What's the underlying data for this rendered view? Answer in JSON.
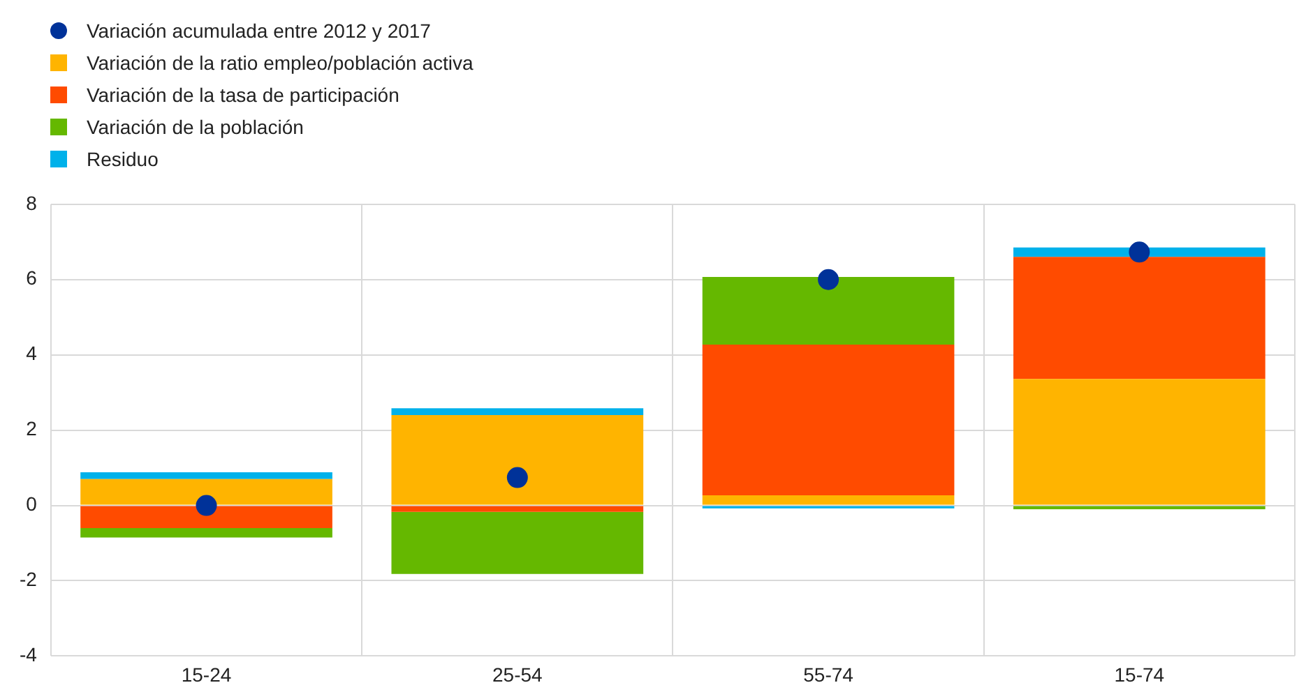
{
  "chart_data": {
    "type": "bar",
    "stacked": true,
    "categories": [
      "15-24",
      "25-54",
      "55-74",
      "15-74"
    ],
    "series": [
      {
        "name": "Variación acumulada entre 2012 y 2017",
        "type": "scatter",
        "color": "#003299",
        "x": [
          "15-24",
          "25-54",
          "55-74",
          "15-74"
        ],
        "values": [
          0.0,
          0.74,
          6.0,
          6.73
        ]
      },
      {
        "name": "Variación de la ratio empleo/población activa",
        "color": "#ffb400",
        "values": [
          0.7,
          2.4,
          0.27,
          3.36
        ]
      },
      {
        "name": "Variación de la tasa de participación",
        "color": "#ff4b00",
        "values": [
          -0.6,
          -0.17,
          4.0,
          3.24
        ]
      },
      {
        "name": "Variación de la población",
        "color": "#65b800",
        "values": [
          -0.25,
          -1.65,
          1.8,
          -0.1
        ]
      },
      {
        "name": "Residuo",
        "color": "#00b1ea",
        "values": [
          0.18,
          0.18,
          -0.08,
          0.25
        ]
      }
    ],
    "ylim": [
      -4,
      8
    ],
    "yticks": [
      -4,
      -2,
      0,
      2,
      4,
      6,
      8
    ],
    "grid": true,
    "legend": "top left",
    "marker": "circle"
  }
}
